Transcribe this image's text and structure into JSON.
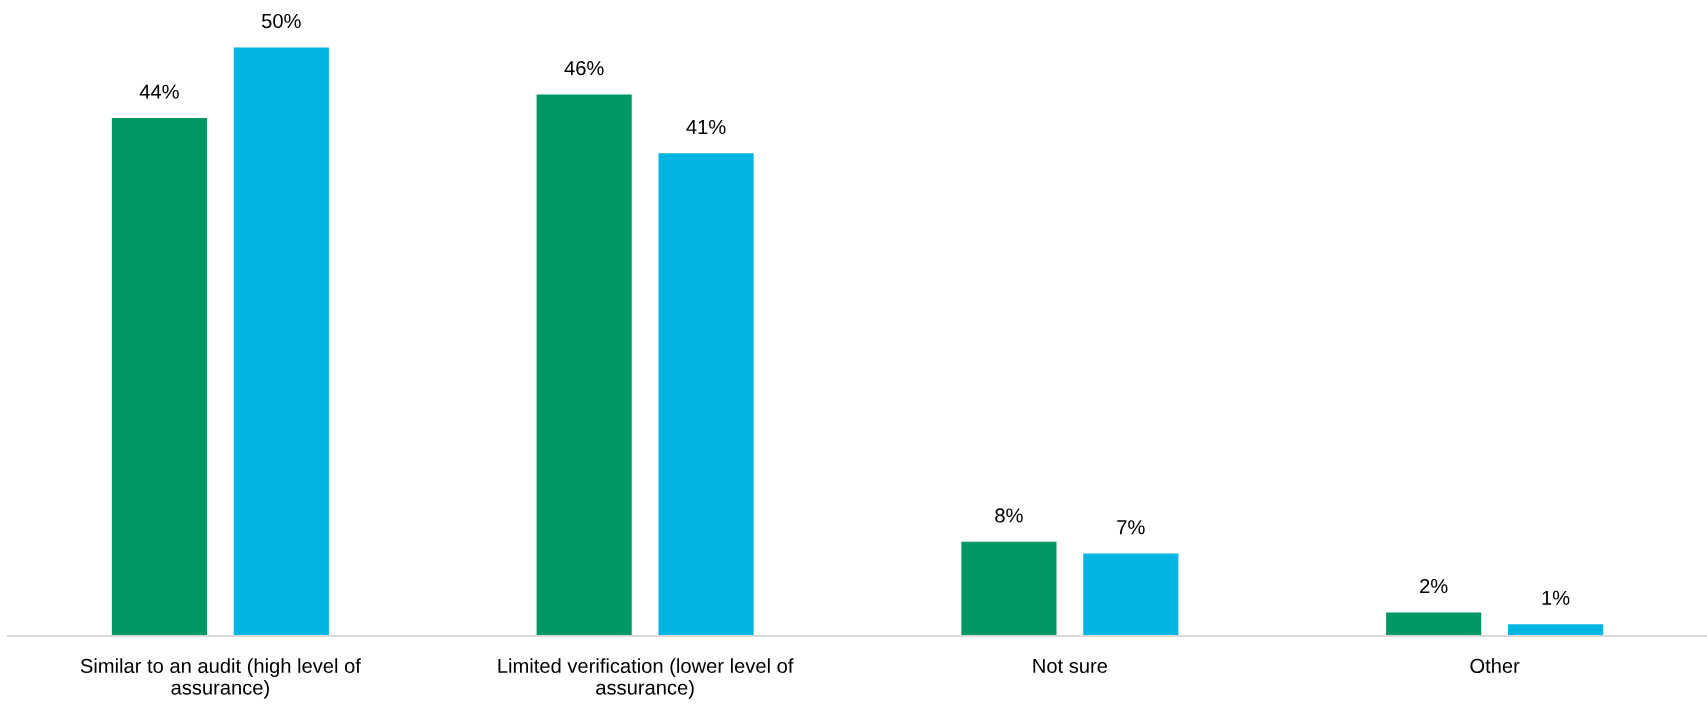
{
  "chart_data": {
    "type": "bar",
    "categories": [
      "Similar to an audit (high level of assurance)",
      "Limited verification (lower level of assurance)",
      "Not sure",
      "Other"
    ],
    "series": [
      {
        "color": "#009966",
        "values": [
          44,
          46,
          8,
          2
        ],
        "value_labels": [
          "44%",
          "46%",
          "8%",
          "2%"
        ]
      },
      {
        "color": "#00b5e2",
        "values": [
          50,
          41,
          7,
          1
        ],
        "value_labels": [
          "50%",
          "41%",
          "7%",
          "1%"
        ]
      }
    ],
    "tick_labels": "x"
  }
}
